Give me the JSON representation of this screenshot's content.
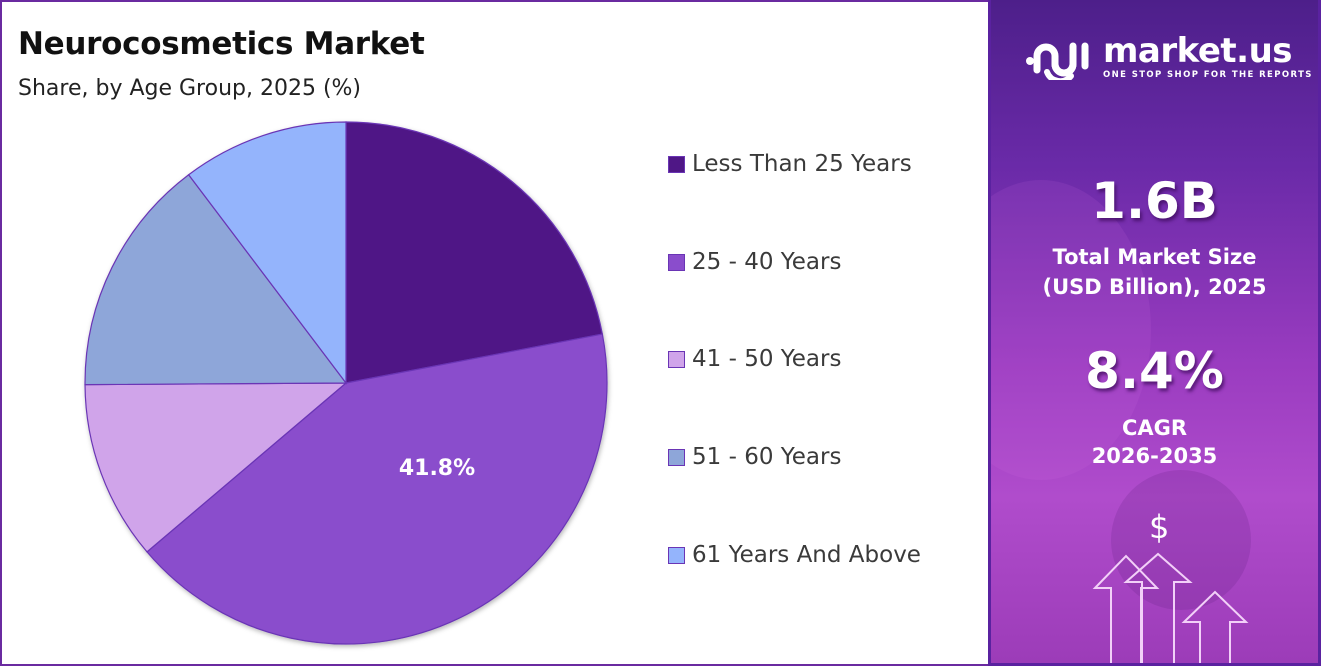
{
  "title": "Neurocosmetics Market",
  "subtitle": "Share, by Age Group, 2025 (%)",
  "legend": [
    {
      "label": "Less Than 25 Years",
      "color": "#4f1786"
    },
    {
      "label": "25 - 40 Years",
      "color": "#8a4dcc"
    },
    {
      "label": "41 - 50 Years",
      "color": "#d0a4ea"
    },
    {
      "label": "51 - 60 Years",
      "color": "#8ea6d9"
    },
    {
      "label": "61 Years And Above",
      "color": "#94b4fc"
    }
  ],
  "pie_label": "41.8%",
  "brand": {
    "name": "market.us",
    "tagline": "ONE STOP SHOP FOR THE REPORTS"
  },
  "stats": {
    "market_size_value": "1.6B",
    "market_size_label_line1": "Total Market Size",
    "market_size_label_line2": "(USD Billion), 2025",
    "cagr_value": "8.4%",
    "cagr_label_line1": "CAGR",
    "cagr_label_line2": "2026-2035"
  },
  "icons": {
    "dollar": "$"
  },
  "chart_data": {
    "type": "pie",
    "title": "Neurocosmetics Market",
    "subtitle": "Share, by Age Group, 2025 (%)",
    "categories": [
      "Less Than 25 Years",
      "25 - 40 Years",
      "41 - 50 Years",
      "51 - 60 Years",
      "61 Years And Above"
    ],
    "values": [
      22.0,
      41.8,
      11.1,
      14.8,
      10.3
    ],
    "colors": [
      "#4f1786",
      "#8a4dcc",
      "#d0a4ea",
      "#8ea6d9",
      "#94b4fc"
    ],
    "labeled_slices": [
      {
        "category": "25 - 40 Years",
        "label": "41.8%"
      }
    ],
    "start_angle_deg": 0,
    "direction": "clockwise",
    "legend_position": "right"
  }
}
